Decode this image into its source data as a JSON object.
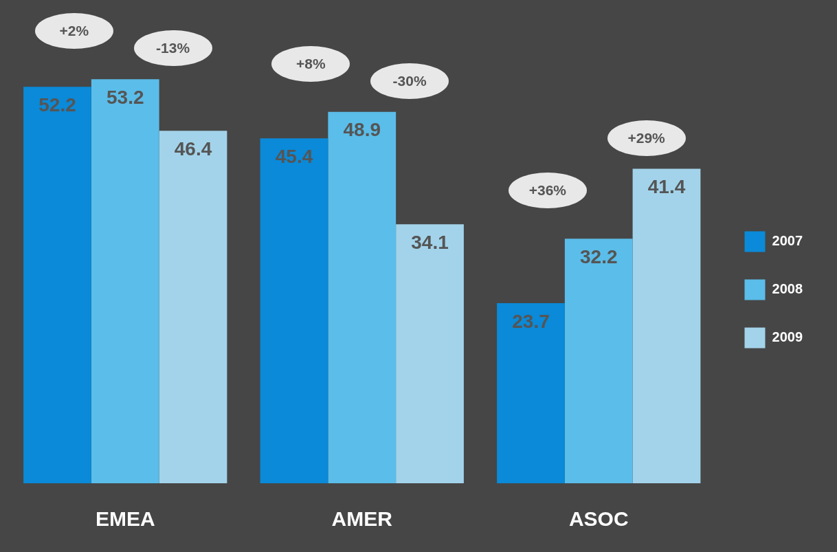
{
  "chart_data": {
    "type": "bar",
    "categories": [
      "EMEA",
      "AMER",
      "ASOC"
    ],
    "series": [
      {
        "name": "2007",
        "color": "#0a8ad8",
        "values": [
          52.2,
          45.4,
          23.7
        ]
      },
      {
        "name": "2008",
        "color": "#5bbde9",
        "values": [
          53.2,
          48.9,
          32.2
        ]
      },
      {
        "name": "2009",
        "color": "#a3d3ea",
        "values": [
          46.4,
          34.1,
          41.4
        ]
      }
    ],
    "tick_labels": "x",
    "grid": false,
    "legend": "right",
    "data_labels": true,
    "annotations": [
      "+2%",
      "-13%",
      "+8%",
      "-30%",
      "+36%",
      "+29%"
    ]
  }
}
